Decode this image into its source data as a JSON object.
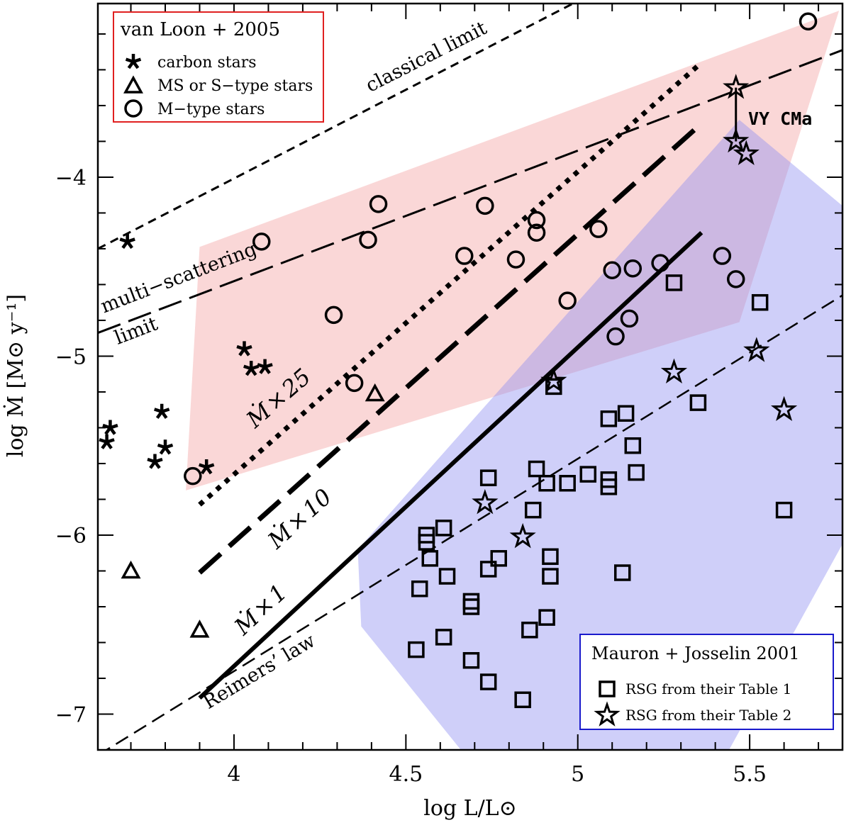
{
  "chart_data": {
    "type": "scatter",
    "xlabel": "log  L/L⊙",
    "ylabel": "log  Ṁ [M⊙ y⁻¹]",
    "xlim": [
      3.604,
      5.77
    ],
    "ylim": [
      -7.2,
      -3.03
    ],
    "xticks": [
      4,
      4.5,
      5,
      5.5
    ],
    "xtick_labels": [
      "4",
      "4.5",
      "5",
      "5.5"
    ],
    "yticks": [
      -4,
      -5,
      -6,
      -7
    ],
    "ytick_labels": [
      "−4",
      "−5",
      "−6",
      "−7"
    ],
    "grid": false,
    "legends": [
      {
        "title": "van Loon  +  2005",
        "placement": "top-left",
        "border_color": "#e02020",
        "entries": [
          "carbon stars",
          "MS or S−type stars",
          "M−type stars"
        ]
      },
      {
        "title": "Mauron  +  Josselin 2001",
        "placement": "bottom-right",
        "border_color": "#1a1acc",
        "entries": [
          "RSG from their Table 1",
          "RSG from their Table 2"
        ]
      }
    ],
    "series": [
      {
        "name": "carbon stars",
        "marker": "asterisk",
        "points": [
          [
            3.69,
            -4.36
          ],
          [
            4.03,
            -4.96
          ],
          [
            4.05,
            -5.07
          ],
          [
            4.09,
            -5.06
          ],
          [
            3.79,
            -5.31
          ],
          [
            3.64,
            -5.4
          ],
          [
            3.63,
            -5.48
          ],
          [
            3.8,
            -5.51
          ],
          [
            3.77,
            -5.59
          ],
          [
            3.92,
            -5.62
          ]
        ]
      },
      {
        "name": "MS or S-type stars",
        "marker": "triangle",
        "points": [
          [
            4.41,
            -5.21
          ],
          [
            3.7,
            -6.2
          ],
          [
            3.9,
            -6.53
          ]
        ]
      },
      {
        "name": "M-type stars",
        "marker": "circle",
        "points": [
          [
            5.67,
            -3.13
          ],
          [
            4.08,
            -4.36
          ],
          [
            4.42,
            -4.15
          ],
          [
            4.39,
            -4.35
          ],
          [
            4.73,
            -4.16
          ],
          [
            4.29,
            -4.77
          ],
          [
            4.67,
            -4.44
          ],
          [
            4.82,
            -4.46
          ],
          [
            4.88,
            -4.24
          ],
          [
            4.88,
            -4.31
          ],
          [
            5.06,
            -4.29
          ],
          [
            4.97,
            -4.69
          ],
          [
            5.1,
            -4.52
          ],
          [
            5.16,
            -4.51
          ],
          [
            5.24,
            -4.48
          ],
          [
            5.15,
            -4.79
          ],
          [
            5.11,
            -4.89
          ],
          [
            5.42,
            -4.44
          ],
          [
            5.46,
            -4.57
          ],
          [
            4.35,
            -5.15
          ],
          [
            3.88,
            -5.67
          ]
        ]
      },
      {
        "name": "RSG from their Table 1",
        "marker": "square",
        "points": [
          [
            5.28,
            -4.59
          ],
          [
            5.53,
            -4.7
          ],
          [
            5.35,
            -5.26
          ],
          [
            5.09,
            -5.35
          ],
          [
            5.14,
            -5.32
          ],
          [
            5.16,
            -5.5
          ],
          [
            5.17,
            -5.65
          ],
          [
            4.93,
            -5.17
          ],
          [
            5.03,
            -5.66
          ],
          [
            5.09,
            -5.69
          ],
          [
            5.09,
            -5.73
          ],
          [
            4.88,
            -5.63
          ],
          [
            4.91,
            -5.71
          ],
          [
            4.97,
            -5.71
          ],
          [
            4.74,
            -5.68
          ],
          [
            4.87,
            -5.86
          ],
          [
            5.6,
            -5.86
          ],
          [
            4.56,
            -6.0
          ],
          [
            4.56,
            -6.04
          ],
          [
            4.61,
            -5.96
          ],
          [
            4.57,
            -6.13
          ],
          [
            4.62,
            -6.23
          ],
          [
            4.77,
            -6.13
          ],
          [
            4.74,
            -6.19
          ],
          [
            4.92,
            -6.12
          ],
          [
            4.92,
            -6.23
          ],
          [
            5.13,
            -6.21
          ],
          [
            4.54,
            -6.3
          ],
          [
            4.69,
            -6.37
          ],
          [
            4.69,
            -6.4
          ],
          [
            4.91,
            -6.46
          ],
          [
            4.86,
            -6.53
          ],
          [
            4.61,
            -6.57
          ],
          [
            4.53,
            -6.64
          ],
          [
            4.69,
            -6.7
          ],
          [
            4.74,
            -6.82
          ],
          [
            4.84,
            -6.92
          ]
        ]
      },
      {
        "name": "RSG from their Table 2",
        "marker": "star",
        "points": [
          [
            5.46,
            -3.5
          ],
          [
            5.46,
            -3.8
          ],
          [
            5.49,
            -3.87
          ],
          [
            5.52,
            -4.97
          ],
          [
            5.28,
            -5.09
          ],
          [
            4.93,
            -5.14
          ],
          [
            5.6,
            -5.3
          ],
          [
            4.73,
            -5.82
          ],
          [
            4.84,
            -6.01
          ]
        ]
      }
    ],
    "lines": [
      {
        "name": "classical limit",
        "style": "short-dash",
        "width": 3,
        "points": [
          [
            3.604,
            -4.4
          ],
          [
            4.986,
            -3.03
          ]
        ]
      },
      {
        "name": "multi-scattering limit",
        "style": "long-dash",
        "width": 3,
        "points": [
          [
            3.604,
            -4.87
          ],
          [
            5.77,
            -3.29
          ]
        ]
      },
      {
        "name": "Reimers' law",
        "style": "dash",
        "width": 2.5,
        "points": [
          [
            3.604,
            -7.23
          ],
          [
            5.77,
            -4.66
          ]
        ]
      },
      {
        "name": "Mdot x 1",
        "style": "solid",
        "width": 6,
        "points": [
          [
            3.9,
            -6.91
          ],
          [
            5.36,
            -4.31
          ]
        ]
      },
      {
        "name": "Mdot x 10",
        "style": "thick-dash",
        "width": 7,
        "points": [
          [
            3.9,
            -6.21
          ],
          [
            5.36,
            -3.7
          ]
        ]
      },
      {
        "name": "Mdot x 25",
        "style": "dotted",
        "width": 7,
        "points": [
          [
            3.9,
            -5.83
          ],
          [
            5.36,
            -3.36
          ]
        ]
      },
      {
        "name": "VY CMa",
        "style": "solid",
        "width": 3,
        "points": [
          [
            5.46,
            -3.5
          ],
          [
            5.46,
            -3.8
          ]
        ]
      }
    ],
    "regions": [
      {
        "name": "van Loon region",
        "color": "#f4a0a0",
        "points": [
          [
            3.9,
            -4.39
          ],
          [
            5.76,
            -3.07
          ],
          [
            5.47,
            -4.81
          ],
          [
            3.86,
            -5.75
          ]
        ]
      },
      {
        "name": "Mauron region",
        "color": "#8c8cf0",
        "points": [
          [
            5.47,
            -3.68
          ],
          [
            5.77,
            -4.16
          ],
          [
            5.77,
            -6.05
          ],
          [
            5.44,
            -7.2
          ],
          [
            4.66,
            -7.2
          ],
          [
            4.37,
            -6.51
          ],
          [
            4.36,
            -6.08
          ]
        ]
      }
    ],
    "annotations": {
      "classical": "classical limit",
      "multi": "multi−scattering",
      "limit": "limit",
      "m25": "Ṁ × 25",
      "m10": "Ṁ × 10",
      "m1": "Ṁ × 1",
      "reimers": "Reimers’ law",
      "vycma": "VY CMa"
    }
  }
}
